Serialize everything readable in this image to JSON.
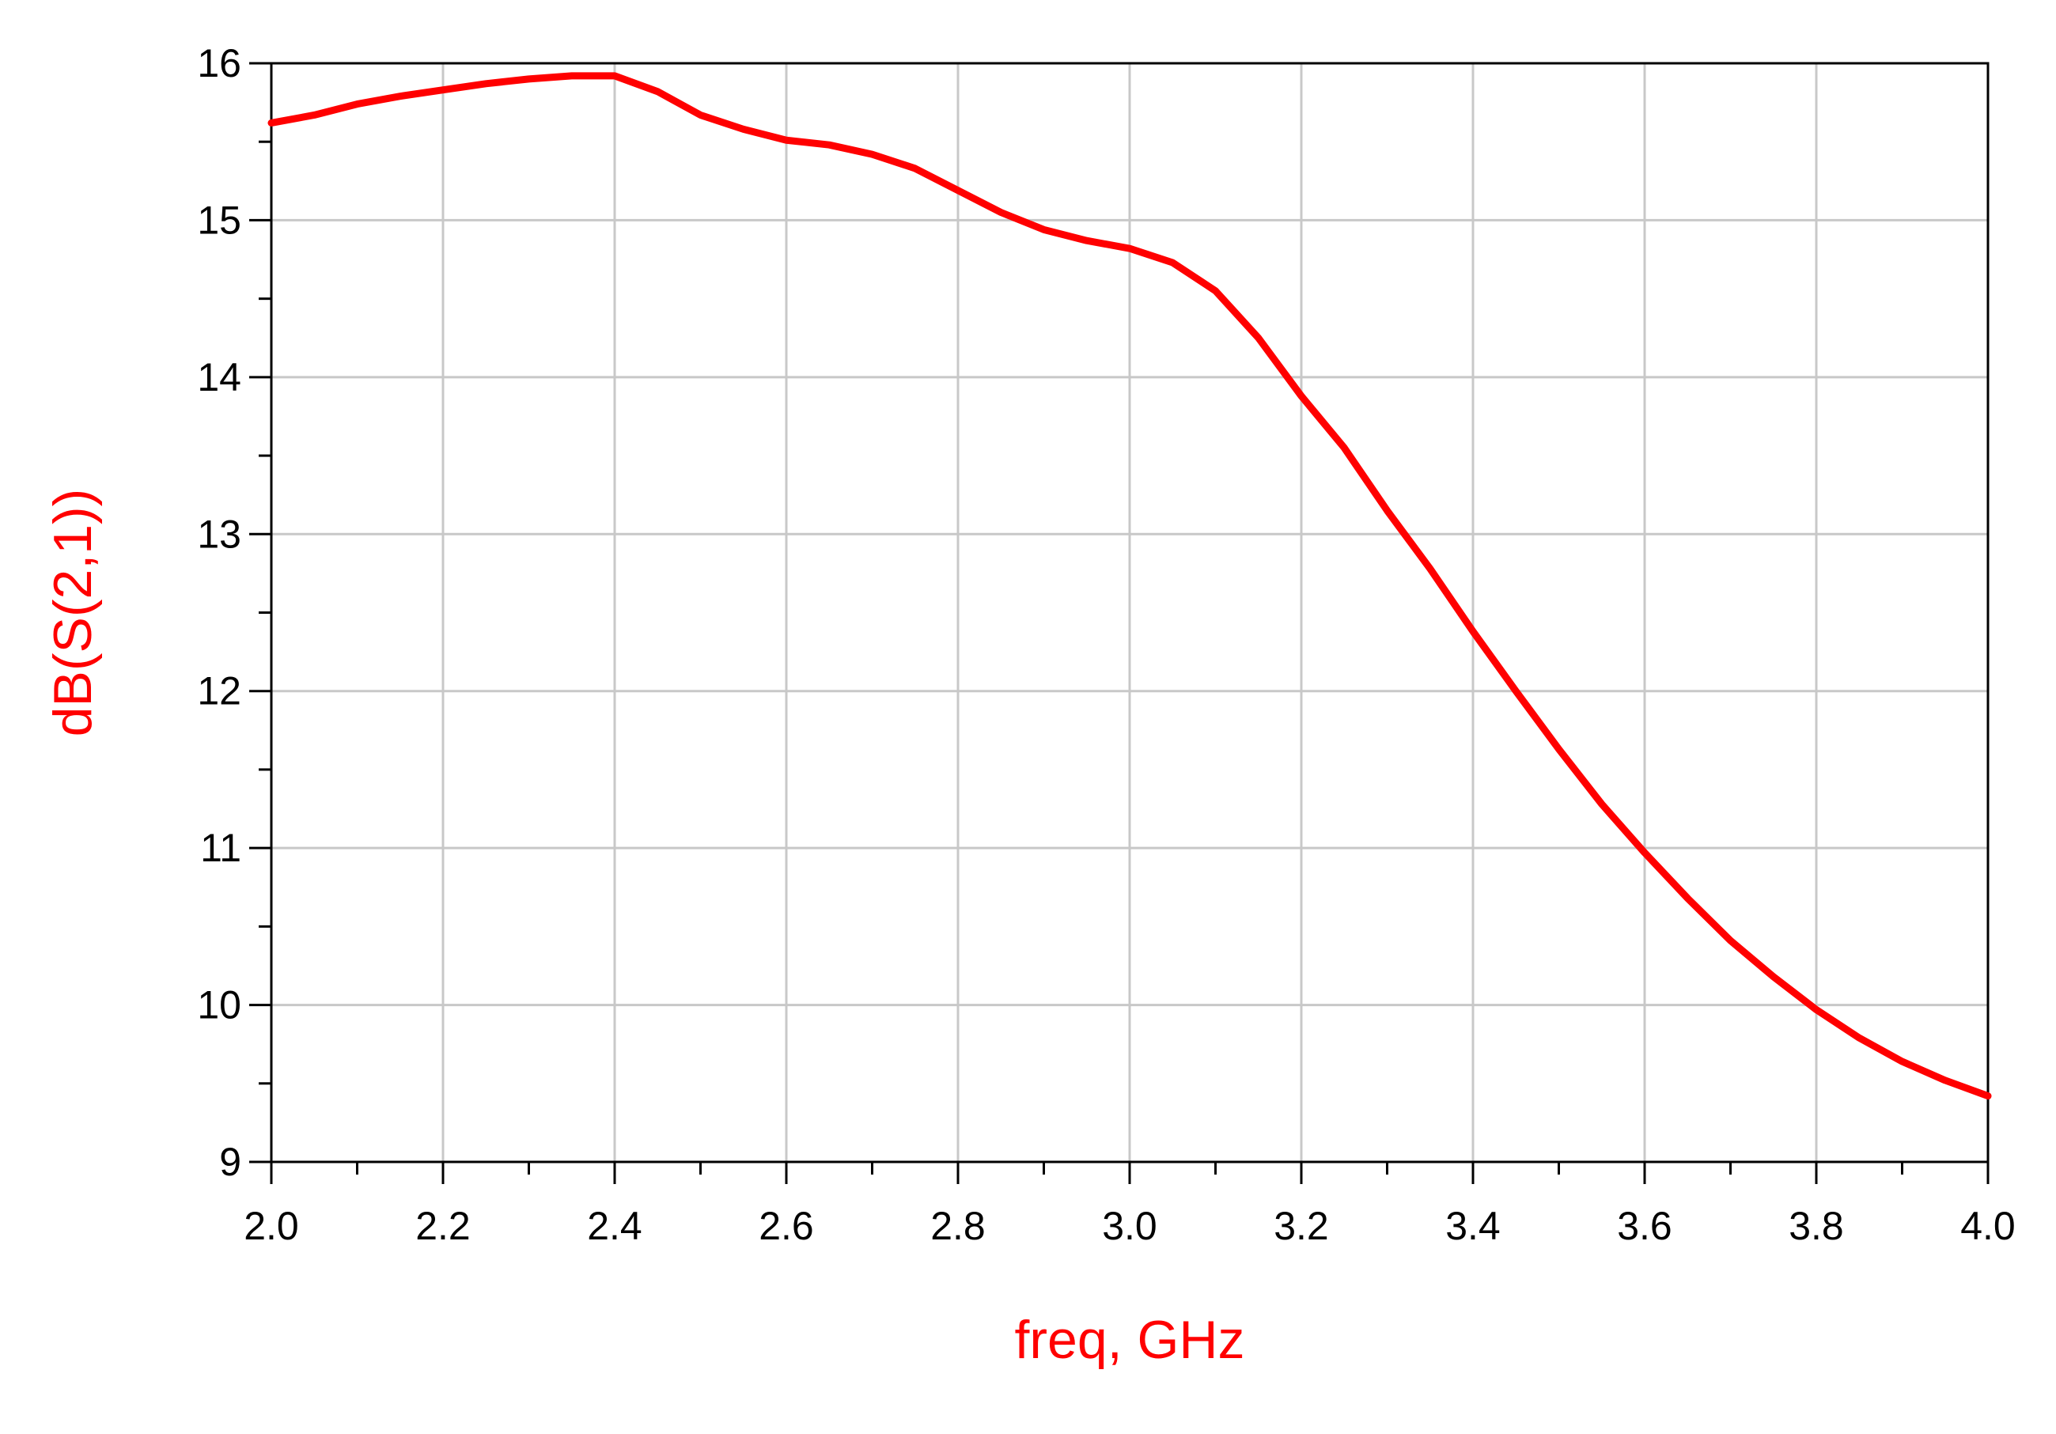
{
  "chart_data": {
    "type": "line",
    "x_label": "freq, GHz",
    "y_label": "dB(S(2,1))",
    "x": [
      2.0,
      2.05,
      2.1,
      2.15,
      2.2,
      2.25,
      2.3,
      2.35,
      2.4,
      2.45,
      2.5,
      2.55,
      2.6,
      2.65,
      2.7,
      2.75,
      2.8,
      2.85,
      2.9,
      2.95,
      3.0,
      3.05,
      3.1,
      3.15,
      3.2,
      3.25,
      3.3,
      3.35,
      3.4,
      3.45,
      3.5,
      3.55,
      3.6,
      3.65,
      3.7,
      3.75,
      3.8,
      3.85,
      3.9,
      3.95,
      4.0
    ],
    "series": [
      {
        "name": "dB(S(2,1))",
        "color": "#ff0000",
        "values": [
          15.62,
          15.67,
          15.74,
          15.79,
          15.83,
          15.87,
          15.9,
          15.92,
          15.92,
          15.82,
          15.67,
          15.58,
          15.51,
          15.48,
          15.42,
          15.33,
          15.19,
          15.05,
          14.94,
          14.87,
          14.82,
          14.73,
          14.55,
          14.25,
          13.88,
          13.55,
          13.15,
          12.78,
          12.38,
          12.0,
          11.63,
          11.28,
          10.97,
          10.68,
          10.41,
          10.18,
          9.97,
          9.79,
          9.64,
          9.52,
          9.42
        ]
      }
    ],
    "xlim": [
      2.0,
      4.0
    ],
    "xticks": [
      {
        "value": 2.0,
        "label": "2.0"
      },
      2.2,
      2.4,
      2.6,
      2.8,
      {
        "value": 3.0,
        "label": "3.0"
      },
      3.2,
      3.4,
      3.6,
      3.8,
      {
        "value": 4.0,
        "label": "4.0"
      }
    ],
    "ylim": [
      9,
      16
    ],
    "yticks": [
      9,
      10,
      11,
      12,
      13,
      14,
      15,
      16
    ],
    "grid": true,
    "axis_label_color": "#ff0000"
  }
}
